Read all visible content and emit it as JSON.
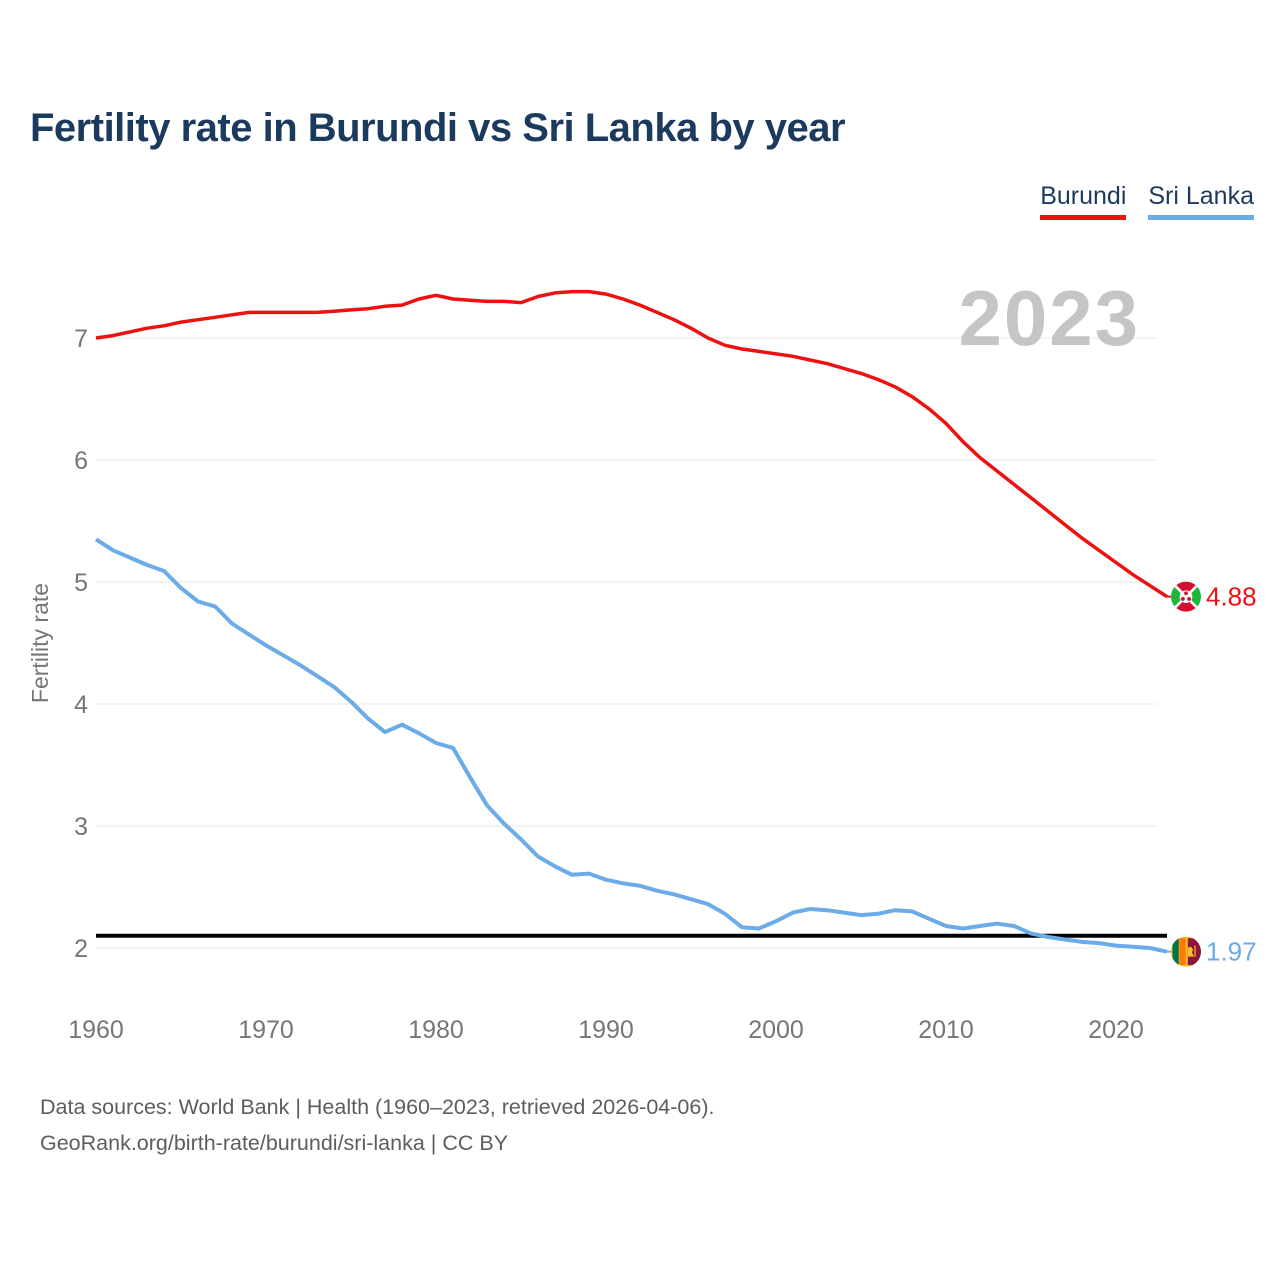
{
  "header": {
    "title": "Fertility rate in Burundi vs Sri Lanka by year"
  },
  "legend": {
    "items": [
      {
        "label": "Burundi",
        "color": "#ee1111"
      },
      {
        "label": "Sri Lanka",
        "color": "#6aabe8"
      }
    ]
  },
  "watermark": "2023",
  "axis": {
    "y_label": "Fertility rate"
  },
  "end_labels": {
    "burundi": "4.88",
    "sri_lanka": "1.97"
  },
  "footer": {
    "sources": "Data sources: World Bank | Health (1960–2023, retrieved 2026-04-06).",
    "attribution": "GeoRank.org/birth-rate/burundi/sri-lanka | CC BY"
  },
  "chart_data": {
    "type": "line",
    "title": "Fertility rate in Burundi vs Sri Lanka by year",
    "xlabel": "",
    "ylabel": "Fertility rate",
    "grid": true,
    "legend_position": "top-right",
    "xlim": [
      1960,
      2023
    ],
    "ylim": [
      1.75,
      7.6
    ],
    "xticks": [
      1960,
      1970,
      1980,
      1990,
      2000,
      2010,
      2020
    ],
    "yticks": [
      2,
      3,
      4,
      5,
      6,
      7
    ],
    "reference_line": {
      "value": 2.1,
      "color": "#000000"
    },
    "x": [
      1960,
      1961,
      1962,
      1963,
      1964,
      1965,
      1966,
      1967,
      1968,
      1969,
      1970,
      1971,
      1972,
      1973,
      1974,
      1975,
      1976,
      1977,
      1978,
      1979,
      1980,
      1981,
      1982,
      1983,
      1984,
      1985,
      1986,
      1987,
      1988,
      1989,
      1990,
      1991,
      1992,
      1993,
      1994,
      1995,
      1996,
      1997,
      1998,
      1999,
      2000,
      2001,
      2002,
      2003,
      2004,
      2005,
      2006,
      2007,
      2008,
      2009,
      2010,
      2011,
      2012,
      2013,
      2014,
      2015,
      2016,
      2017,
      2018,
      2019,
      2020,
      2021,
      2022,
      2023
    ],
    "series": [
      {
        "name": "Burundi",
        "color": "#ee1111",
        "end_label": "4.88",
        "values": [
          7.0,
          7.02,
          7.05,
          7.08,
          7.1,
          7.13,
          7.15,
          7.17,
          7.19,
          7.21,
          7.21,
          7.21,
          7.21,
          7.21,
          7.22,
          7.23,
          7.24,
          7.26,
          7.27,
          7.32,
          7.35,
          7.32,
          7.31,
          7.3,
          7.3,
          7.29,
          7.34,
          7.37,
          7.38,
          7.38,
          7.36,
          7.32,
          7.27,
          7.21,
          7.15,
          7.08,
          7.0,
          6.94,
          6.91,
          6.89,
          6.87,
          6.85,
          6.82,
          6.79,
          6.75,
          6.71,
          6.66,
          6.6,
          6.52,
          6.42,
          6.3,
          6.15,
          6.02,
          5.91,
          5.8,
          5.69,
          5.58,
          5.47,
          5.36,
          5.26,
          5.16,
          5.06,
          4.97,
          4.88
        ]
      },
      {
        "name": "Sri Lanka",
        "color": "#6aabe8",
        "end_label": "1.97",
        "values": [
          5.35,
          5.26,
          5.2,
          5.14,
          5.09,
          4.95,
          4.84,
          4.8,
          4.66,
          4.57,
          4.48,
          4.4,
          4.32,
          4.23,
          4.14,
          4.02,
          3.88,
          3.77,
          3.83,
          3.76,
          3.68,
          3.64,
          3.4,
          3.17,
          3.02,
          2.89,
          2.75,
          2.67,
          2.6,
          2.61,
          2.56,
          2.53,
          2.51,
          2.47,
          2.44,
          2.4,
          2.36,
          2.28,
          2.17,
          2.16,
          2.22,
          2.29,
          2.32,
          2.31,
          2.29,
          2.27,
          2.28,
          2.31,
          2.3,
          2.24,
          2.18,
          2.16,
          2.18,
          2.2,
          2.18,
          2.12,
          2.09,
          2.07,
          2.05,
          2.04,
          2.02,
          2.01,
          2.0,
          1.97
        ]
      }
    ],
    "annotations": {
      "year_watermark": "2023",
      "end_value_labels": [
        4.88,
        1.97
      ]
    }
  }
}
